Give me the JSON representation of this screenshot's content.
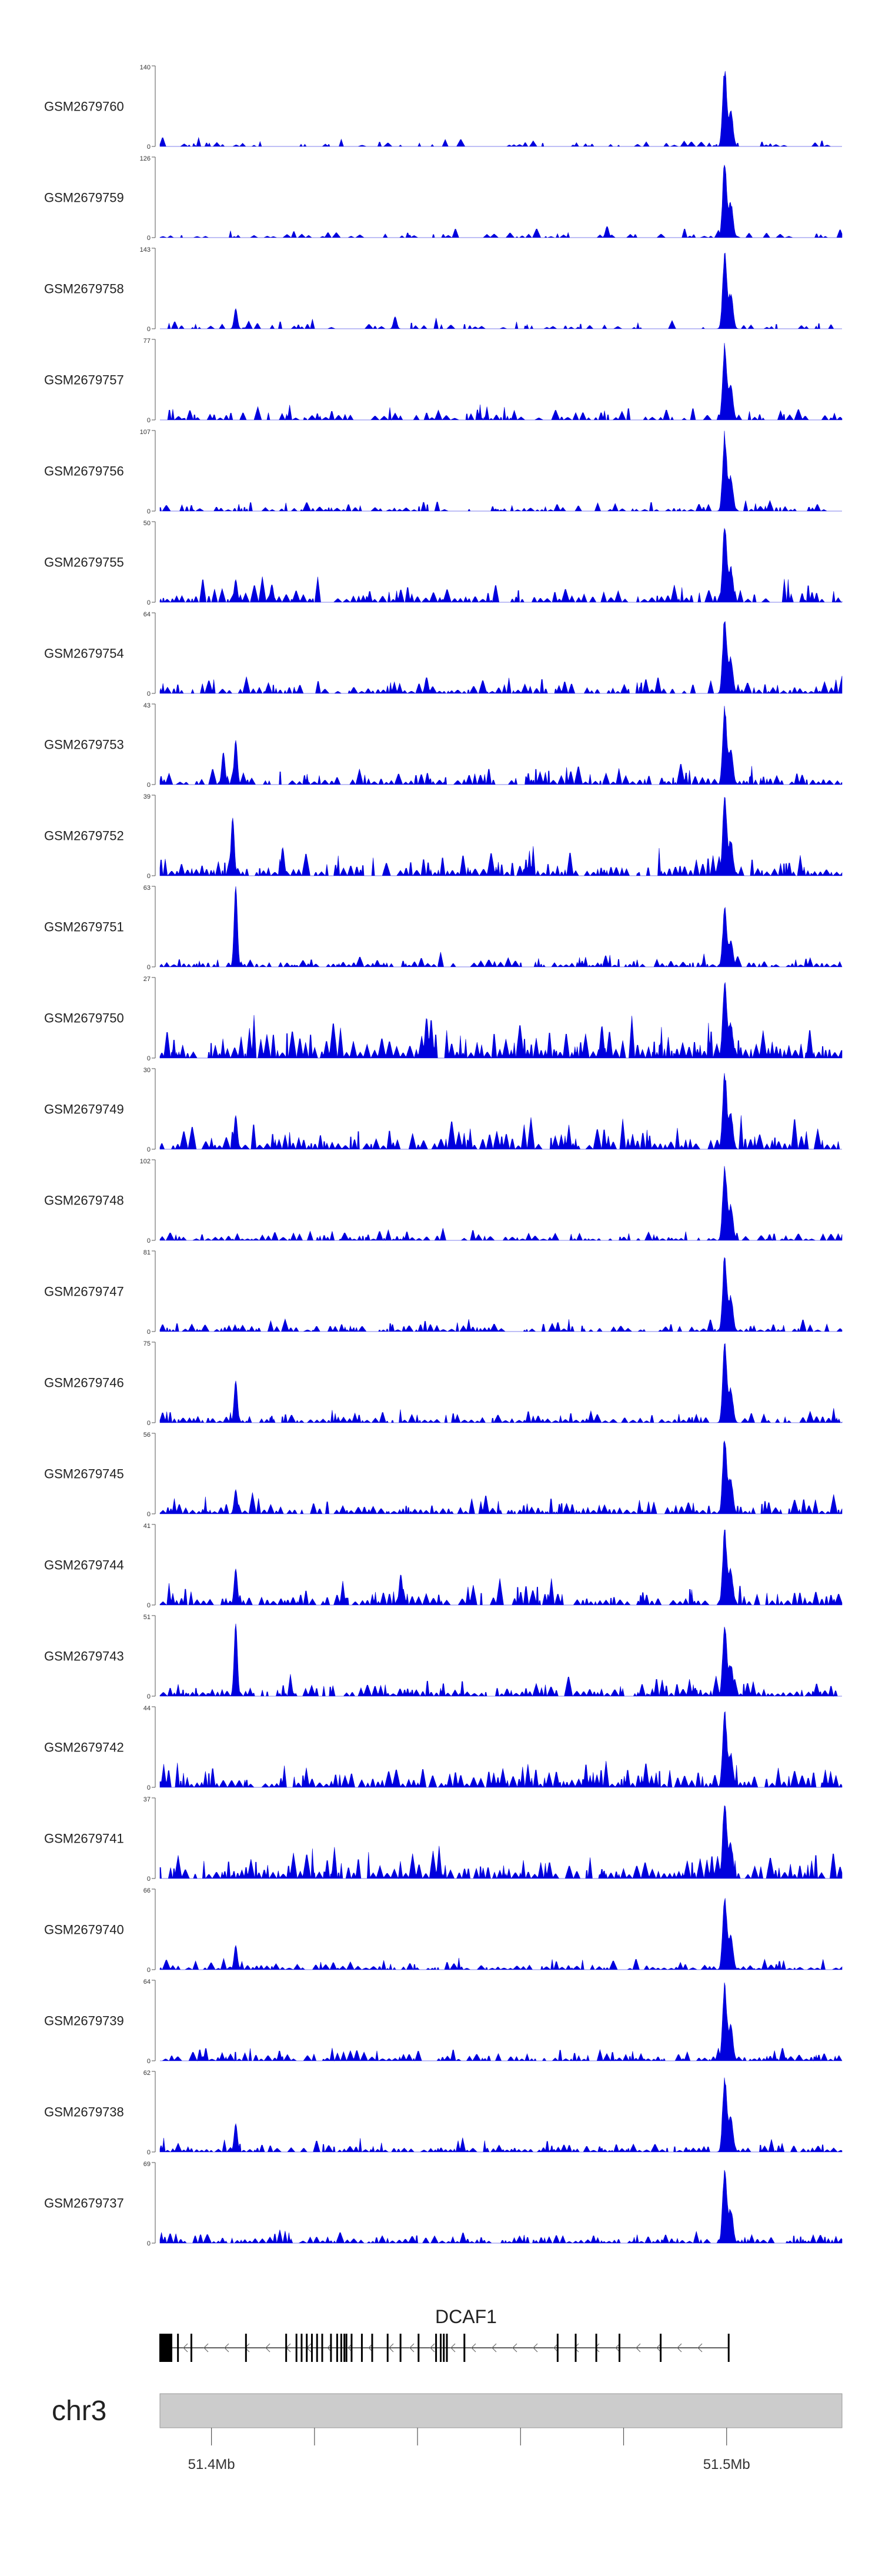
{
  "chart_data": {
    "type": "area",
    "title": "",
    "xlabel": "",
    "ylabel": "",
    "colors": {
      "track_fill": "#0000dd",
      "axis": "#555555",
      "gene": "#000000",
      "chrom_bar": "#cccccc"
    },
    "x_range_mb": [
      51.39,
      51.5224
    ],
    "peak_center_mb": 51.4995,
    "tracks": [
      {
        "name": "GSM2679760",
        "ymax": 140,
        "ymin": 0,
        "peak": 1.0,
        "noise": 0.1,
        "density": 0.45,
        "secondary": []
      },
      {
        "name": "GSM2679759",
        "ymax": 126,
        "ymin": 0,
        "peak": 1.0,
        "noise": 0.1,
        "density": 0.55,
        "secondary": [
          [
            51.4767,
            0.14
          ]
        ]
      },
      {
        "name": "GSM2679758",
        "ymax": 143,
        "ymin": 0,
        "peak": 1.0,
        "noise": 0.12,
        "density": 0.55,
        "secondary": [
          [
            51.4047,
            0.25
          ],
          [
            51.4356,
            0.15
          ]
        ]
      },
      {
        "name": "GSM2679757",
        "ymax": 77,
        "ymin": 0,
        "peak": 1.0,
        "noise": 0.15,
        "density": 0.75,
        "secondary": []
      },
      {
        "name": "GSM2679756",
        "ymax": 107,
        "ymin": 0,
        "peak": 1.0,
        "noise": 0.12,
        "density": 0.7,
        "secondary": []
      },
      {
        "name": "GSM2679755",
        "ymax": 50,
        "ymin": 0,
        "peak": 1.0,
        "noise": 0.25,
        "density": 0.8,
        "secondary": [
          [
            51.4047,
            0.28
          ],
          [
            51.4117,
            0.22
          ]
        ]
      },
      {
        "name": "GSM2679754",
        "ymax": 64,
        "ymin": 0,
        "peak": 1.0,
        "noise": 0.18,
        "density": 0.8,
        "secondary": [
          [
            51.4417,
            0.2
          ]
        ]
      },
      {
        "name": "GSM2679753",
        "ymax": 43,
        "ymin": 0,
        "peak": 1.0,
        "noise": 0.22,
        "density": 0.85,
        "secondary": [
          [
            51.4047,
            0.55
          ],
          [
            51.4023,
            0.4
          ]
        ]
      },
      {
        "name": "GSM2679752",
        "ymax": 39,
        "ymin": 0,
        "peak": 1.0,
        "noise": 0.28,
        "density": 0.9,
        "secondary": [
          [
            51.4041,
            0.72
          ],
          [
            51.4138,
            0.35
          ]
        ]
      },
      {
        "name": "GSM2679751",
        "ymax": 63,
        "ymin": 0,
        "peak": 0.75,
        "noise": 0.15,
        "density": 0.85,
        "secondary": [
          [
            51.4047,
            1.0
          ]
        ]
      },
      {
        "name": "GSM2679750",
        "ymax": 27,
        "ymin": 0,
        "peak": 1.0,
        "noise": 0.45,
        "density": 0.95,
        "secondary": [
          [
            51.4417,
            0.5
          ],
          [
            51.4757,
            0.4
          ]
        ]
      },
      {
        "name": "GSM2679749",
        "ymax": 30,
        "ymin": 0,
        "peak": 1.0,
        "noise": 0.32,
        "density": 0.9,
        "secondary": [
          [
            51.4047,
            0.42
          ]
        ]
      },
      {
        "name": "GSM2679748",
        "ymax": 102,
        "ymin": 0,
        "peak": 1.0,
        "noise": 0.12,
        "density": 0.8,
        "secondary": []
      },
      {
        "name": "GSM2679747",
        "ymax": 81,
        "ymin": 0,
        "peak": 1.0,
        "noise": 0.15,
        "density": 0.85,
        "secondary": []
      },
      {
        "name": "GSM2679746",
        "ymax": 75,
        "ymin": 0,
        "peak": 1.0,
        "noise": 0.15,
        "density": 0.85,
        "secondary": [
          [
            51.4047,
            0.52
          ]
        ]
      },
      {
        "name": "GSM2679745",
        "ymax": 56,
        "ymin": 0,
        "peak": 1.0,
        "noise": 0.2,
        "density": 0.9,
        "secondary": [
          [
            51.4047,
            0.3
          ]
        ]
      },
      {
        "name": "GSM2679744",
        "ymax": 41,
        "ymin": 0,
        "peak": 1.0,
        "noise": 0.28,
        "density": 0.9,
        "secondary": [
          [
            51.4047,
            0.45
          ],
          [
            51.4367,
            0.38
          ]
        ]
      },
      {
        "name": "GSM2679743",
        "ymax": 51,
        "ymin": 0,
        "peak": 0.9,
        "noise": 0.22,
        "density": 0.9,
        "secondary": [
          [
            51.4047,
            0.9
          ]
        ]
      },
      {
        "name": "GSM2679742",
        "ymax": 44,
        "ymin": 0,
        "peak": 1.0,
        "noise": 0.28,
        "density": 0.92,
        "secondary": []
      },
      {
        "name": "GSM2679741",
        "ymax": 37,
        "ymin": 0,
        "peak": 1.0,
        "noise": 0.35,
        "density": 0.92,
        "secondary": []
      },
      {
        "name": "GSM2679740",
        "ymax": 66,
        "ymin": 0,
        "peak": 1.0,
        "noise": 0.12,
        "density": 0.85,
        "secondary": [
          [
            51.4047,
            0.3
          ]
        ]
      },
      {
        "name": "GSM2679739",
        "ymax": 64,
        "ymin": 0,
        "peak": 1.0,
        "noise": 0.15,
        "density": 0.88,
        "secondary": []
      },
      {
        "name": "GSM2679738",
        "ymax": 62,
        "ymin": 0,
        "peak": 1.0,
        "noise": 0.15,
        "density": 0.88,
        "secondary": [
          [
            51.4047,
            0.35
          ]
        ]
      },
      {
        "name": "GSM2679737",
        "ymax": 69,
        "ymin": 0,
        "peak": 1.0,
        "noise": 0.14,
        "density": 0.88,
        "secondary": []
      }
    ],
    "gene": {
      "name": "DCAF1",
      "start_mb": 51.39,
      "end_mb": 51.5004,
      "strand": "-",
      "exons_mb": [
        51.3907,
        51.3912,
        51.3917,
        51.3922,
        51.3935,
        51.3961,
        51.4067,
        51.4145,
        51.4165,
        51.4175,
        51.4185,
        51.4195,
        51.4205,
        51.4215,
        51.4232,
        51.4244,
        51.4252,
        51.4258,
        51.4262,
        51.4272,
        51.4292,
        51.4312,
        51.4342,
        51.4367,
        51.4402,
        51.4436,
        51.4445,
        51.4451,
        51.4457,
        51.4491,
        51.4672,
        51.4707,
        51.4747,
        51.4792,
        51.4872,
        51.5004
      ]
    },
    "chromosome": {
      "label": "chr3",
      "ticks_mb": [
        51.4,
        51.42,
        51.44,
        51.46,
        51.48,
        51.5
      ],
      "tick_labels": [
        "51.4Mb",
        "",
        "",
        "",
        "",
        "51.5Mb"
      ]
    }
  }
}
